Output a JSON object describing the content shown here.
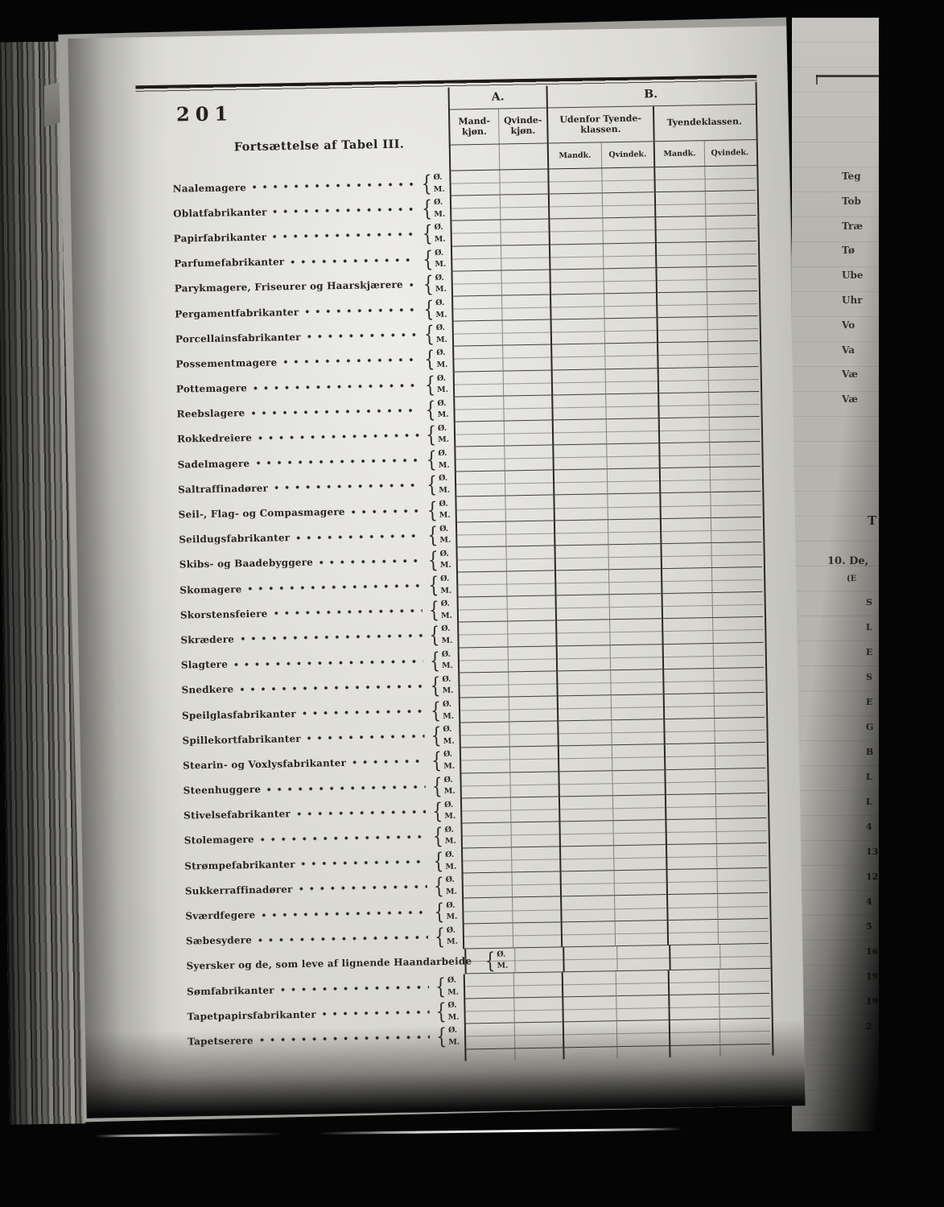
{
  "document": {
    "page_number": "201",
    "title": "Fortsættelse af Tabel III."
  },
  "table": {
    "section_a": "A.",
    "section_b": "B.",
    "col_mand": "Mand-kjøn.",
    "col_qvinde": "Qvinde-kjøn.",
    "group_outside": "Udenfor Tyende-klassen.",
    "group_servant": "Tyendeklassen.",
    "sub_male": "Mandk.",
    "sub_female": "Qvindek.",
    "row_brace": "{",
    "row_sub_labels": [
      "Ø.",
      "M."
    ],
    "occupations": [
      "Naalemagere",
      "Oblatfabrikanter",
      "Papirfabrikanter",
      "Parfumefabrikanter",
      "Parykmagere, Friseurer og Haarskjærere",
      "Pergamentfabrikanter",
      "Porcellainsfabrikanter",
      "Possementmagere",
      "Pottemagere",
      "Reebslagere",
      "Rokkedreiere",
      "Sadelmagere",
      "Saltraffinadører",
      "Seil-, Flag- og Compasmagere",
      "Seildugsfabrikanter",
      "Skibs- og Baadebyggere",
      "Skomagere",
      "Skorstensfeiere",
      "Skrædere",
      "Slagtere",
      "Snedkere",
      "Speilglasfabrikanter",
      "Spillekortfabrikanter",
      "Stearin- og Voxlysfabrikanter",
      "Steenhuggere",
      "Stivelsefabrikanter",
      "Stolemagere",
      "Strømpefabrikanter",
      "Sukkerraffinadører",
      "Sværdfegere",
      "Sæbesydere",
      "Syersker og de, som leve af lignende Haandarbeide",
      "Sømfabrikanter",
      "Tapetpapirsfabrikanter",
      "Tapetserere"
    ]
  },
  "adjacent_page": {
    "label_fragments": [
      "Teg",
      "Tob",
      "Træ",
      "Tø",
      "Ube",
      "Uhr",
      "Vo",
      "Va",
      "Væ",
      "Væ"
    ],
    "section_fragment": "10. De,",
    "paren_fragment": "(E",
    "single_fragment": "T",
    "column_fragments": [
      "S",
      "L",
      "E",
      "S",
      "E",
      "G",
      "B",
      "L",
      "L",
      "4",
      "13",
      "12",
      "4",
      "5",
      "16",
      "19",
      "19",
      "2"
    ]
  },
  "colors": {
    "paper": "#d8d7d1",
    "ink": "#201d19",
    "background": "#050505",
    "page_edge_gray": "#8d8c87"
  }
}
